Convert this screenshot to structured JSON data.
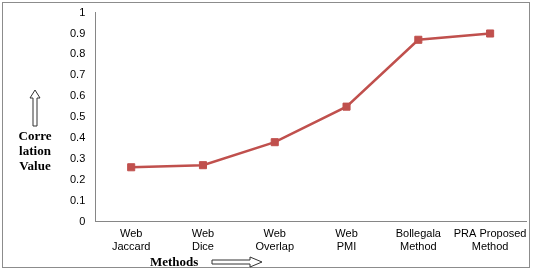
{
  "chart_data": {
    "type": "line",
    "categories": [
      "Web Jaccard",
      "Web Dice",
      "Web Overlap",
      "Web PMI",
      "Bollegala Method",
      "PRA Proposed Method"
    ],
    "values": [
      0.26,
      0.27,
      0.38,
      0.55,
      0.87,
      0.9
    ],
    "color": "#c0504d",
    "marker": "square",
    "ylim": [
      0,
      1
    ],
    "yticks": [
      0,
      0.1,
      0.2,
      0.3,
      0.4,
      0.5,
      0.6,
      0.7,
      0.8,
      0.9,
      1
    ],
    "grid": false,
    "x_label": "Methods",
    "y_label": [
      "Corre",
      "lation",
      "Value"
    ]
  }
}
